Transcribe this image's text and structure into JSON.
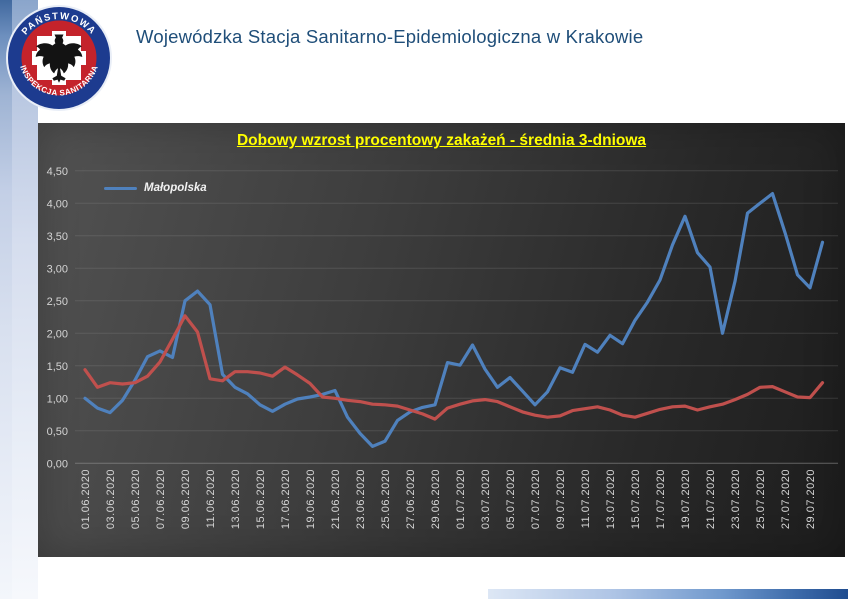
{
  "header": {
    "title": "Wojewódzka Stacja Sanitarno-Epidemiologiczna w Krakowie",
    "title_color": "#1f4e79"
  },
  "logo": {
    "top_text": "PAŃSTWOWA",
    "bottom_text": "INSPEKCJA SANITARNA",
    "ring_color": "#1d3b8f",
    "inner_ring_color": "#c4232b"
  },
  "chart_data": {
    "type": "line",
    "title": "Dobowy wzrost procentowy zakażeń - średnia 3-dniowa",
    "title_color": "#ffff00",
    "xlabel": "",
    "ylabel": "",
    "ylim": [
      0,
      4.5
    ],
    "y_ticks": [
      "0,00",
      "0,50",
      "1,00",
      "1,50",
      "2,00",
      "2,50",
      "3,00",
      "3,50",
      "4,00",
      "4,50"
    ],
    "grid": true,
    "legend_position": "top-left",
    "legend_entries": [
      "Małopolska"
    ],
    "x": [
      "01.06.2020",
      "02.06.2020",
      "03.06.2020",
      "04.06.2020",
      "05.06.2020",
      "06.06.2020",
      "07.06.2020",
      "08.06.2020",
      "09.06.2020",
      "10.06.2020",
      "11.06.2020",
      "12.06.2020",
      "13.06.2020",
      "14.06.2020",
      "15.06.2020",
      "16.06.2020",
      "17.06.2020",
      "18.06.2020",
      "19.06.2020",
      "20.06.2020",
      "21.06.2020",
      "22.06.2020",
      "23.06.2020",
      "24.06.2020",
      "25.06.2020",
      "26.06.2020",
      "27.06.2020",
      "28.06.2020",
      "29.06.2020",
      "30.06.2020",
      "01.07.2020",
      "02.07.2020",
      "03.07.2020",
      "04.07.2020",
      "05.07.2020",
      "06.07.2020",
      "07.07.2020",
      "08.07.2020",
      "09.07.2020",
      "10.07.2020",
      "11.07.2020",
      "12.07.2020",
      "13.07.2020",
      "14.07.2020",
      "15.07.2020",
      "16.07.2020",
      "17.07.2020",
      "18.07.2020",
      "19.07.2020",
      "20.07.2020",
      "21.07.2020",
      "22.07.2020",
      "23.07.2020",
      "24.07.2020",
      "25.07.2020",
      "26.07.2020",
      "27.07.2020",
      "28.07.2020",
      "29.07.2020",
      "30.07.2020"
    ],
    "x_tick_every": 2,
    "series": [
      {
        "name": "Małopolska",
        "color": "#4f81bd",
        "values": [
          1.0,
          0.85,
          0.78,
          0.97,
          1.28,
          1.64,
          1.73,
          1.63,
          2.5,
          2.65,
          2.44,
          1.37,
          1.17,
          1.07,
          0.9,
          0.8,
          0.91,
          0.99,
          1.02,
          1.06,
          1.12,
          0.71,
          0.46,
          0.26,
          0.34,
          0.66,
          0.79,
          0.86,
          0.9,
          1.55,
          1.51,
          1.82,
          1.45,
          1.17,
          1.32,
          1.11,
          0.9,
          1.1,
          1.47,
          1.4,
          1.83,
          1.71,
          1.97,
          1.84,
          2.2,
          2.48,
          2.82,
          3.36,
          3.8,
          3.24,
          3.02,
          2.0,
          2.8,
          3.85,
          4.0,
          4.15,
          3.55,
          2.9,
          2.7,
          3.4
        ]
      },
      {
        "name": "",
        "color": "#c0504d",
        "values": [
          1.44,
          1.17,
          1.24,
          1.22,
          1.24,
          1.34,
          1.56,
          1.91,
          2.27,
          2.02,
          1.3,
          1.27,
          1.41,
          1.41,
          1.39,
          1.34,
          1.48,
          1.36,
          1.23,
          1.02,
          1.0,
          0.97,
          0.95,
          0.91,
          0.9,
          0.88,
          0.82,
          0.76,
          0.68,
          0.85,
          0.91,
          0.96,
          0.98,
          0.95,
          0.87,
          0.79,
          0.74,
          0.71,
          0.73,
          0.81,
          0.84,
          0.87,
          0.82,
          0.74,
          0.71,
          0.77,
          0.83,
          0.87,
          0.88,
          0.82,
          0.87,
          0.91,
          0.98,
          1.06,
          1.17,
          1.18,
          1.1,
          1.02,
          1.01,
          1.24
        ]
      }
    ]
  }
}
